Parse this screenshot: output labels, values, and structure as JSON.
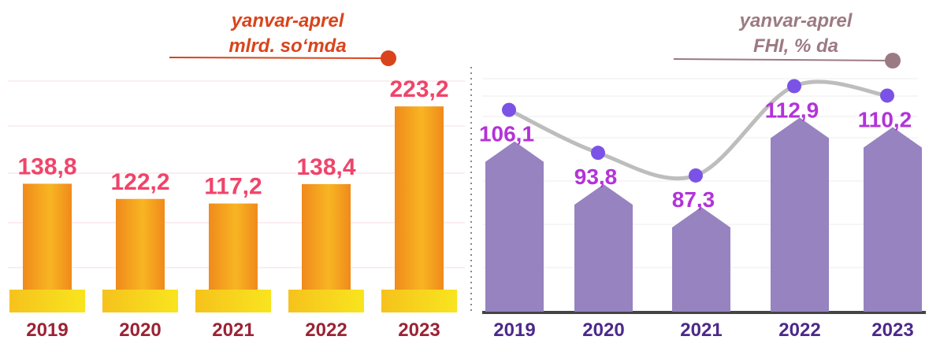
{
  "chart_data": [
    {
      "type": "bar",
      "title": "yanvar-aprel",
      "subtitle": "mlrd. so‘mda",
      "categories": [
        "2019",
        "2020",
        "2021",
        "2022",
        "2023"
      ],
      "values": [
        138.8,
        122.2,
        117.2,
        138.4,
        223.2
      ],
      "value_labels": [
        "138,8",
        "122,2",
        "117,2",
        "138,4",
        "223,2"
      ],
      "color": "#f29a1f",
      "ylim": [
        0,
        250
      ]
    },
    {
      "type": "bar-line",
      "title": "yanvar-aprel",
      "subtitle": "FHI, % da",
      "categories": [
        "2019",
        "2020",
        "2021",
        "2022",
        "2023"
      ],
      "values": [
        106.1,
        93.8,
        87.3,
        112.9,
        110.2
      ],
      "value_labels": [
        "106,1",
        "93,8",
        "87,3",
        "112,9",
        "110,2"
      ],
      "color": "#9683c0",
      "line_color": "#bdbdbd",
      "marker_color": "#7b52e6",
      "ylim": [
        60,
        120
      ]
    }
  ]
}
